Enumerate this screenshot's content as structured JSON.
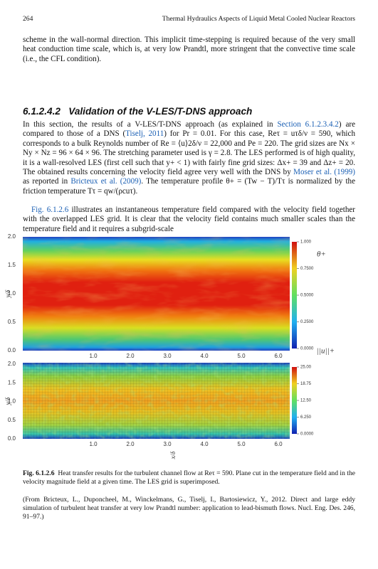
{
  "header": {
    "page_number": "264",
    "running_title": "Thermal Hydraulics Aspects of Liquid Metal Cooled Nuclear Reactors"
  },
  "paragraphs": [
    {
      "runs": [
        "scheme in the wall-normal direction. This implicit time-stepping is required because of the very small heat conduction time scale, which is, at very low Prandtl, more stringent that the convective time scale (i.e., the CFL condition)."
      ]
    }
  ],
  "section": {
    "number": "6.1.2.4.2",
    "title": "Validation of the V-LES/T-DNS approach"
  },
  "body": [
    {
      "runs": [
        "In this section, the results of a V-LES/T-DNS approach (as explained in ",
        {
          "link": "Section 6.1.2.3.4.2"
        },
        ") are compared to those of a DNS (",
        {
          "link": "Tiselj, 2011"
        },
        ") for Pr = 0.01. For this case, Reτ = uτδ/ν = 590, which corresponds to a bulk Reynolds number of Re = ⟨u⟩2δ/ν = 22,000 and Pe = 220. The grid sizes are Nx × Ny × Nz = 96 × 64 × 96. The stretching parameter used is γ = 2.8. The LES performed is of high quality, it is a wall-resolved LES (first cell such that y+ < 1) with fairly fine grid sizes: Δx+ = 39 and Δz+ = 20. The obtained results concerning the velocity field agree very well with the DNS by ",
        {
          "link": "Moser et al. (1999)"
        },
        " as reported in ",
        {
          "link": "Bricteux et al. (2009)"
        },
        ". The temperature profile θ+ = (Tw − T)/Tτ is normalized by the friction temperature Tτ = qw/(ρcuτ)."
      ]
    },
    {
      "runs": [
        {
          "link": "Fig. 6.1.2.6"
        },
        " illustrates an instantaneous temperature field compared with the velocity field together with the overlapped LES grid. It is clear that the velocity field contains much smaller scales than the temperature field and it requires a subgrid-scale"
      ]
    }
  ],
  "figure": {
    "panels": [
      {
        "y_label": "y/δ",
        "y_ticks": [
          "2.0",
          "1.5",
          "1.0",
          "0.5",
          "0.0"
        ],
        "x_ticks": [
          "1.0",
          "2.0",
          "3.0",
          "4.0",
          "5.0",
          "6.0"
        ],
        "colorbar_title": "θ+",
        "colorbar_ticks": [
          "1.000",
          "0.7500",
          "0.5000",
          "0.2500",
          "0.0000"
        ]
      },
      {
        "y_label": "y/δ",
        "y_ticks": [
          "2.0",
          "1.5",
          "1.0",
          "0.5",
          "0.0"
        ],
        "x_ticks": [
          "1.0",
          "2.0",
          "3.0",
          "4.0",
          "5.0",
          "6.0"
        ],
        "colorbar_title": "||u||+",
        "colorbar_ticks": [
          "25.00",
          "18.75",
          "12.50",
          "6.250",
          "0.0000"
        ]
      }
    ],
    "x_label": "x/δ"
  },
  "caption": {
    "label": "Fig. 6.1.2.6",
    "text": "Heat transfer results for the turbulent channel flow at Reτ = 590. Plane cut in the temperature field and in the velocity magnitude field at a given time. The LES grid is superimposed.",
    "source": "(From Bricteux, L., Duponcheel, M., Winckelmans, G., Tiselj, I., Bartosiewicz, Y., 2012. Direct and large eddy simulation of turbulent heat transfer at very low Prandtl number: application to lead-bismuth flows. Nucl. Eng. Des. 246, 91–97.)"
  }
}
